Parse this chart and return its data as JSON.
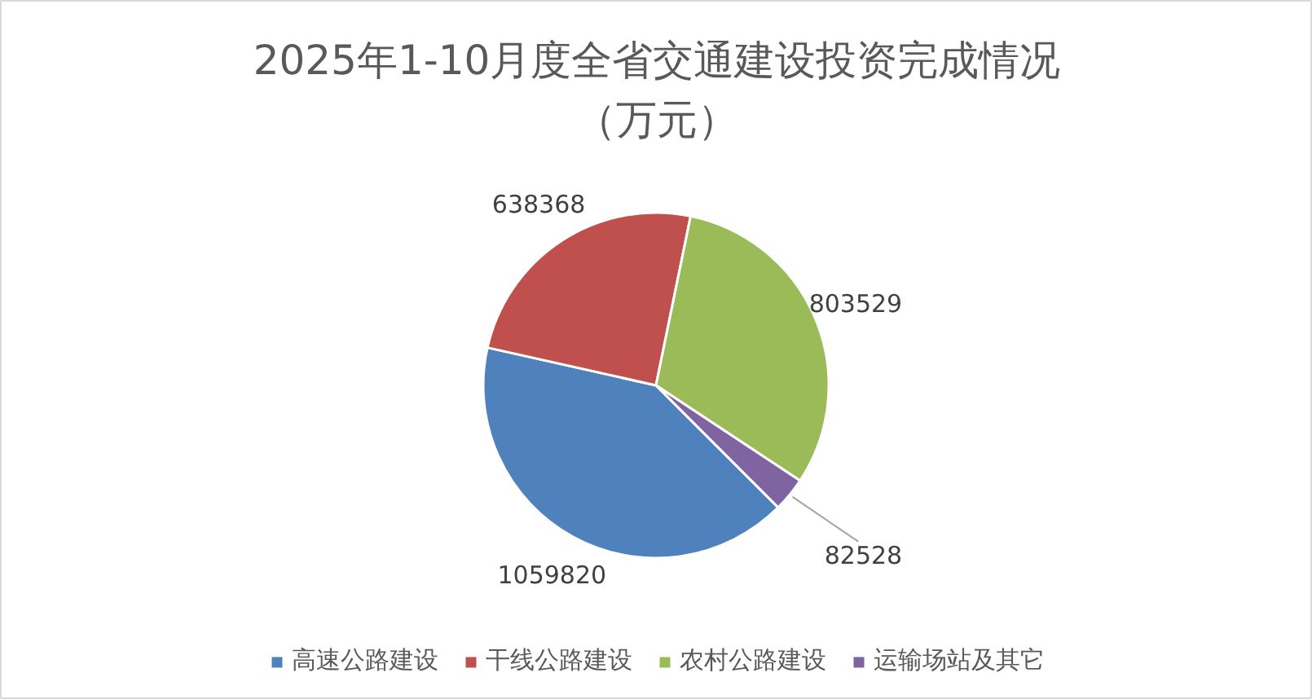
{
  "chart_data": {
    "type": "pie",
    "title": "2025年1-10月度全省交通建设投资完成情况（万元）",
    "categories": [
      "高速公路建设",
      "干线公路建设",
      "农村公路建设",
      "运输场站及其它"
    ],
    "values": [
      1059820,
      638368,
      803529,
      82528
    ],
    "colors": [
      "#4f81bd",
      "#c0504d",
      "#9bbb59",
      "#8064a2"
    ],
    "data_labels": true,
    "legend": "bottom"
  }
}
